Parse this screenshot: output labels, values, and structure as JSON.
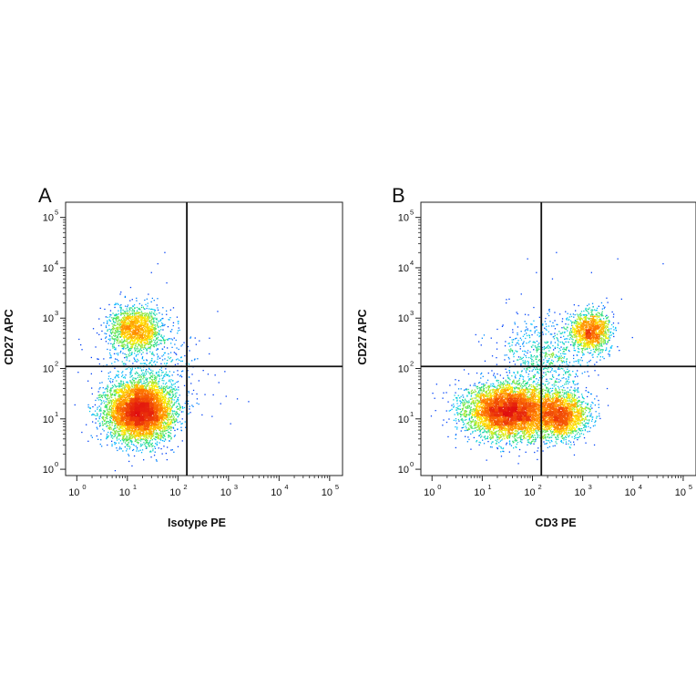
{
  "chart_data": [
    {
      "type": "scatter",
      "panel_label": "A",
      "xlabel": "Isotype PE",
      "ylabel": "CD27 APC",
      "x_scale": "log",
      "y_scale": "log",
      "xlim": [
        0.6,
        180000
      ],
      "ylim": [
        0.75,
        200000
      ],
      "x_ticks": [
        {
          "base": "10",
          "exp": "0",
          "value": 1
        },
        {
          "base": "10",
          "exp": "1",
          "value": 10
        },
        {
          "base": "10",
          "exp": "2",
          "value": 100
        },
        {
          "base": "10",
          "exp": "3",
          "value": 1000
        },
        {
          "base": "10",
          "exp": "4",
          "value": 10000
        },
        {
          "base": "10",
          "exp": "5",
          "value": 100000
        }
      ],
      "y_ticks": [
        {
          "base": "10",
          "exp": "0",
          "value": 1
        },
        {
          "base": "10",
          "exp": "1",
          "value": 10
        },
        {
          "base": "10",
          "exp": "2",
          "value": 100
        },
        {
          "base": "10",
          "exp": "3",
          "value": 1000
        },
        {
          "base": "10",
          "exp": "4",
          "value": 10000
        },
        {
          "base": "10",
          "exp": "5",
          "value": 100000
        }
      ],
      "quadrant_gate": {
        "x": 150,
        "y": 110
      },
      "colormap": [
        "#00008b",
        "#0044ff",
        "#00c8ff",
        "#33e06a",
        "#ffee00",
        "#ff7a00",
        "#e01010"
      ],
      "populations": [
        {
          "x_center": 18,
          "y_center": 14,
          "x_spread": 0.32,
          "y_spread": 0.28,
          "count": 6000
        },
        {
          "x_center": 15,
          "y_center": 600,
          "x_spread": 0.26,
          "y_spread": 0.22,
          "count": 1600
        },
        {
          "x_center": 25,
          "y_center": 80,
          "x_spread": 0.5,
          "y_spread": 0.5,
          "count": 500
        }
      ],
      "sparse_events": [
        {
          "x": 420,
          "y": 400
        },
        {
          "x": 230,
          "y": 300
        },
        {
          "x": 180,
          "y": 420
        },
        {
          "x": 240,
          "y": 25
        },
        {
          "x": 500,
          "y": 30
        },
        {
          "x": 900,
          "y": 28
        },
        {
          "x": 1500,
          "y": 25
        },
        {
          "x": 2500,
          "y": 22
        },
        {
          "x": 1100,
          "y": 8
        },
        {
          "x": 700,
          "y": 20
        },
        {
          "x": 300,
          "y": 12
        },
        {
          "x": 55,
          "y": 20000
        },
        {
          "x": 40,
          "y": 12000
        },
        {
          "x": 30,
          "y": 8000
        },
        {
          "x": 60,
          "y": 5000
        }
      ]
    },
    {
      "type": "scatter",
      "panel_label": "B",
      "xlabel": "CD3 PE",
      "ylabel": "CD27 APC",
      "x_scale": "log",
      "y_scale": "log",
      "xlim": [
        0.6,
        180000
      ],
      "ylim": [
        0.75,
        200000
      ],
      "x_ticks": [
        {
          "base": "10",
          "exp": "0",
          "value": 1
        },
        {
          "base": "10",
          "exp": "1",
          "value": 10
        },
        {
          "base": "10",
          "exp": "2",
          "value": 100
        },
        {
          "base": "10",
          "exp": "3",
          "value": 1000
        },
        {
          "base": "10",
          "exp": "4",
          "value": 10000
        },
        {
          "base": "10",
          "exp": "5",
          "value": 100000
        }
      ],
      "y_ticks": [
        {
          "base": "10",
          "exp": "0",
          "value": 1
        },
        {
          "base": "10",
          "exp": "1",
          "value": 10
        },
        {
          "base": "10",
          "exp": "2",
          "value": 100
        },
        {
          "base": "10",
          "exp": "3",
          "value": 1000
        },
        {
          "base": "10",
          "exp": "4",
          "value": 10000
        },
        {
          "base": "10",
          "exp": "5",
          "value": 100000
        }
      ],
      "quadrant_gate": {
        "x": 150,
        "y": 110
      },
      "colormap": [
        "#00008b",
        "#0044ff",
        "#00c8ff",
        "#33e06a",
        "#ffee00",
        "#ff7a00",
        "#e01010"
      ],
      "populations": [
        {
          "x_center": 35,
          "y_center": 14,
          "x_spread": 0.42,
          "y_spread": 0.26,
          "count": 5500
        },
        {
          "x_center": 350,
          "y_center": 12,
          "x_spread": 0.28,
          "y_spread": 0.22,
          "count": 2200
        },
        {
          "x_center": 1400,
          "y_center": 550,
          "x_spread": 0.2,
          "y_spread": 0.2,
          "count": 1300
        },
        {
          "x_center": 180,
          "y_center": 150,
          "x_spread": 0.45,
          "y_spread": 0.45,
          "count": 700
        }
      ],
      "sparse_events": [
        {
          "x": 30,
          "y": 2000
        },
        {
          "x": 60,
          "y": 3000
        },
        {
          "x": 120,
          "y": 8000
        },
        {
          "x": 250,
          "y": 6000
        },
        {
          "x": 80,
          "y": 15000
        },
        {
          "x": 1500,
          "y": 8000
        },
        {
          "x": 3000,
          "y": 2500
        },
        {
          "x": 5000,
          "y": 15000
        },
        {
          "x": 40000,
          "y": 12000
        },
        {
          "x": 20,
          "y": 600
        },
        {
          "x": 10,
          "y": 400
        },
        {
          "x": 300,
          "y": 20000
        }
      ]
    }
  ]
}
